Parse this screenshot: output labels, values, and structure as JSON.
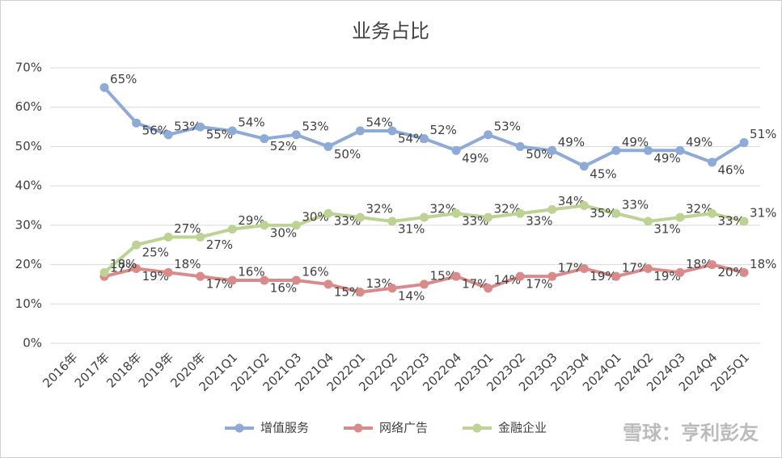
{
  "chart_data": {
    "type": "line",
    "title": "业务占比",
    "categories": [
      "2016年",
      "2017年",
      "2018年",
      "2019年",
      "2020年",
      "2021Q1",
      "2021Q2",
      "2021Q3",
      "2021Q4",
      "2022Q1",
      "2022Q2",
      "2022Q3",
      "2022Q4",
      "2023Q1",
      "2023Q2",
      "2023Q3",
      "2023Q4",
      "2024Q1",
      "2024Q2",
      "2024Q3",
      "2024Q4",
      "2025Q1"
    ],
    "series": [
      {
        "name": "增值服务",
        "color": "#8eaad6",
        "values": [
          null,
          65,
          56,
          53,
          55,
          54,
          52,
          53,
          50,
          54,
          54,
          52,
          49,
          53,
          50,
          49,
          45,
          49,
          49,
          49,
          46,
          51
        ],
        "value_labels": [
          null,
          "65%",
          "56%",
          "53%",
          "55%",
          "54%",
          "52%",
          "53%",
          "50%",
          "54%",
          "54%",
          "52%",
          "49%",
          "53%",
          "50%",
          "49%",
          "45%",
          "49%",
          "49%",
          "49%",
          "46%",
          "51%"
        ]
      },
      {
        "name": "网络广告",
        "color": "#d98b8b",
        "values": [
          null,
          17,
          19,
          18,
          17,
          16,
          16,
          16,
          15,
          13,
          14,
          15,
          17,
          14,
          17,
          17,
          19,
          17,
          19,
          18,
          20,
          18
        ],
        "value_labels": [
          null,
          "17%",
          "19%",
          "18%",
          "17%",
          "16%",
          "16%",
          "16%",
          "15%",
          "13%",
          "14%",
          "15%",
          "17%",
          "14%",
          "17%",
          "17%",
          "19%",
          "17%",
          "19%",
          "18%",
          "20%",
          "18%"
        ]
      },
      {
        "name": "金融企业",
        "color": "#bcd394",
        "values": [
          null,
          18,
          25,
          27,
          27,
          29,
          30,
          30,
          33,
          32,
          31,
          32,
          33,
          32,
          33,
          34,
          35,
          33,
          31,
          32,
          33,
          31
        ],
        "value_labels": [
          null,
          "18%",
          "25%",
          "27%",
          "27%",
          "29%",
          "30%",
          "30%",
          "33%",
          "32%",
          "31%",
          "32%",
          "33%",
          "32%",
          "33%",
          "34%",
          "35%",
          "33%",
          "31%",
          "32%",
          "33%",
          "31%"
        ]
      }
    ],
    "ylim": [
      0,
      70
    ],
    "yticks": [
      {
        "value": 0,
        "label": "0%"
      },
      {
        "value": 10,
        "label": "10%"
      },
      {
        "value": 20,
        "label": "20%"
      },
      {
        "value": 30,
        "label": "30%"
      },
      {
        "value": 40,
        "label": "40%"
      },
      {
        "value": 50,
        "label": "50%"
      },
      {
        "value": 60,
        "label": "60%"
      },
      {
        "value": 70,
        "label": "70%"
      }
    ],
    "grid": true,
    "legend": "bottom",
    "watermark": "雪球：亨利彭友"
  }
}
